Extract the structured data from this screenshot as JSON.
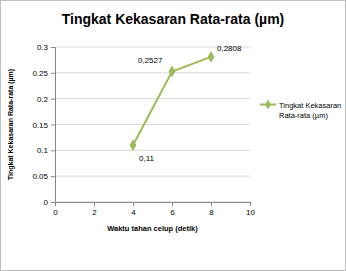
{
  "chart_data": {
    "type": "line",
    "title": "Tingkat Kekasaran Rata-rata (µm)",
    "x_label": "Waktu tahan celup (detik)",
    "y_label": "Tingkat Kekasaran Rata-rata (µm)",
    "x": [
      4,
      6,
      8
    ],
    "series": [
      {
        "name": "Tingkat Kekasaran Rata-rata (µm)",
        "color": "#9bbb59",
        "marker": "diamond",
        "values": [
          0.11,
          0.2527,
          0.2808
        ],
        "value_labels": [
          "0,11",
          "0,2527",
          "0,2808"
        ]
      }
    ],
    "xlim": [
      0,
      10
    ],
    "xticks": [
      0,
      2,
      4,
      6,
      8,
      10
    ],
    "ylim": [
      0,
      0.3
    ],
    "yticks": [
      0,
      0.05,
      0.1,
      0.15,
      0.2,
      0.25,
      0.3
    ],
    "grid": true,
    "legend": "right",
    "data_labels": true
  }
}
